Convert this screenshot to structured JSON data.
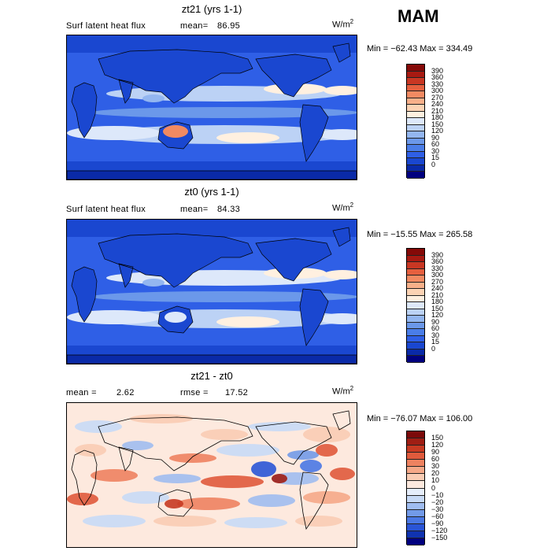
{
  "season": "MAM",
  "colors": {
    "abs": [
      "#00007f",
      "#0a2aa8",
      "#1a47d0",
      "#2f5fe6",
      "#4a7de8",
      "#6b98ea",
      "#93b6f0",
      "#bcd2f5",
      "#dde8fa",
      "#fff0e0",
      "#fcd3b4",
      "#f8b08a",
      "#f28a62",
      "#e5603f",
      "#c93723",
      "#a81a12",
      "#850a08"
    ],
    "diff": [
      "#00007f",
      "#1033b0",
      "#2a55d6",
      "#4a78e4",
      "#729ae8",
      "#a0bdf0",
      "#c8daf6",
      "#e6eefb",
      "#fde9de",
      "#f9ccb4",
      "#f5a888",
      "#ee8260",
      "#e05a3c",
      "#c73a22",
      "#a01e14",
      "#7c0a0a"
    ],
    "land_line": "#000000"
  },
  "panels": [
    {
      "title": "zt21 (yrs 1-1)",
      "left_label": "Surf latent heat flux",
      "mean_label": "mean=",
      "mean_value": "86.95",
      "units": "W/m",
      "units_sup": "2",
      "minmax": "Min = −62.43  Max =  334.49",
      "ticks": [
        "390",
        "360",
        "330",
        "300",
        "270",
        "240",
        "210",
        "180",
        "150",
        "120",
        "90",
        "60",
        "30",
        "15",
        "0"
      ]
    },
    {
      "title": "zt0 (yrs 1-1)",
      "left_label": "Surf latent heat flux",
      "mean_label": "mean=",
      "mean_value": "84.33",
      "units": "W/m",
      "units_sup": "2",
      "minmax": "Min = −15.55  Max =  265.58",
      "ticks": [
        "390",
        "360",
        "330",
        "300",
        "270",
        "240",
        "210",
        "180",
        "150",
        "120",
        "90",
        "60",
        "30",
        "15",
        "0"
      ]
    },
    {
      "title": "zt21 - zt0",
      "left_label": "mean =",
      "mean_value": "2.62",
      "rmse_label": "rmse =",
      "rmse_value": "17.52",
      "units": "W/m",
      "units_sup": "2",
      "minmax": "Min = −76.07  Max =  106.00",
      "ticks": [
        "150",
        "120",
        "90",
        "60",
        "30",
        "20",
        "10",
        "0",
        "−10",
        "−20",
        "−30",
        "−60",
        "−90",
        "−120",
        "−150"
      ]
    }
  ]
}
